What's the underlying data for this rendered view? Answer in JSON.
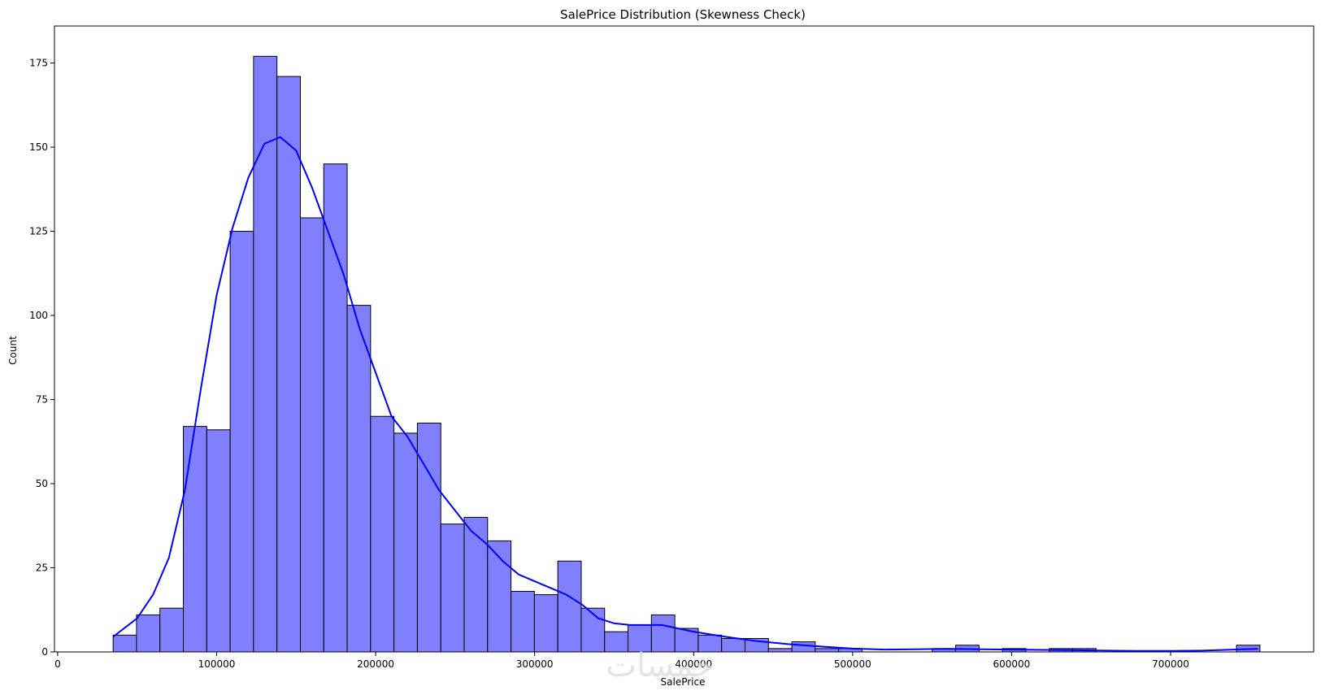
{
  "chart_data": {
    "type": "histogram",
    "title": "SalePrice Distribution (Skewness Check)",
    "xlabel": "SalePrice",
    "ylabel": "Count",
    "xlim": [
      -2000,
      790000
    ],
    "ylim": [
      0,
      186
    ],
    "xticks": [
      0,
      100000,
      200000,
      300000,
      400000,
      500000,
      600000,
      700000
    ],
    "yticks": [
      0,
      25,
      50,
      75,
      100,
      125,
      150,
      175
    ],
    "bin_start": 34900,
    "bin_width": 14720,
    "counts": [
      5,
      11,
      13,
      67,
      66,
      125,
      177,
      171,
      129,
      145,
      103,
      70,
      65,
      68,
      38,
      40,
      33,
      18,
      17,
      27,
      13,
      6,
      8,
      11,
      7,
      5,
      4,
      4,
      1,
      3,
      1,
      1,
      0,
      0,
      0,
      1,
      2,
      0,
      1,
      0,
      1,
      1,
      0,
      0,
      0,
      0,
      0,
      0,
      2
    ],
    "bar_fill": "#8080ff",
    "bar_edge": "#000000",
    "kde_color": "#0000ff",
    "kde": {
      "x": [
        34900,
        50000,
        60000,
        70000,
        80000,
        90000,
        100000,
        110000,
        120000,
        130000,
        140000,
        150000,
        160000,
        170000,
        180000,
        190000,
        200000,
        210000,
        220000,
        230000,
        240000,
        250000,
        260000,
        270000,
        280000,
        290000,
        300000,
        310000,
        320000,
        330000,
        340000,
        350000,
        360000,
        370000,
        380000,
        390000,
        400000,
        420000,
        440000,
        460000,
        480000,
        500000,
        520000,
        540000,
        560000,
        580000,
        600000,
        620000,
        640000,
        660000,
        680000,
        700000,
        720000,
        740000,
        755000
      ],
      "y": [
        4.5,
        10,
        17,
        28,
        48,
        78,
        106,
        126,
        141,
        151,
        153,
        149,
        138,
        125,
        112,
        96,
        83,
        70,
        64,
        56,
        48,
        42,
        36,
        32,
        27,
        23,
        21,
        19,
        17,
        14,
        10,
        8.5,
        8,
        8,
        8,
        7,
        6,
        4.5,
        3.2,
        2.3,
        1.6,
        1,
        0.7,
        0.8,
        0.9,
        0.8,
        0.7,
        0.6,
        0.5,
        0.4,
        0.3,
        0.3,
        0.4,
        0.7,
        0.9
      ]
    }
  },
  "watermark_text": "خمسات"
}
